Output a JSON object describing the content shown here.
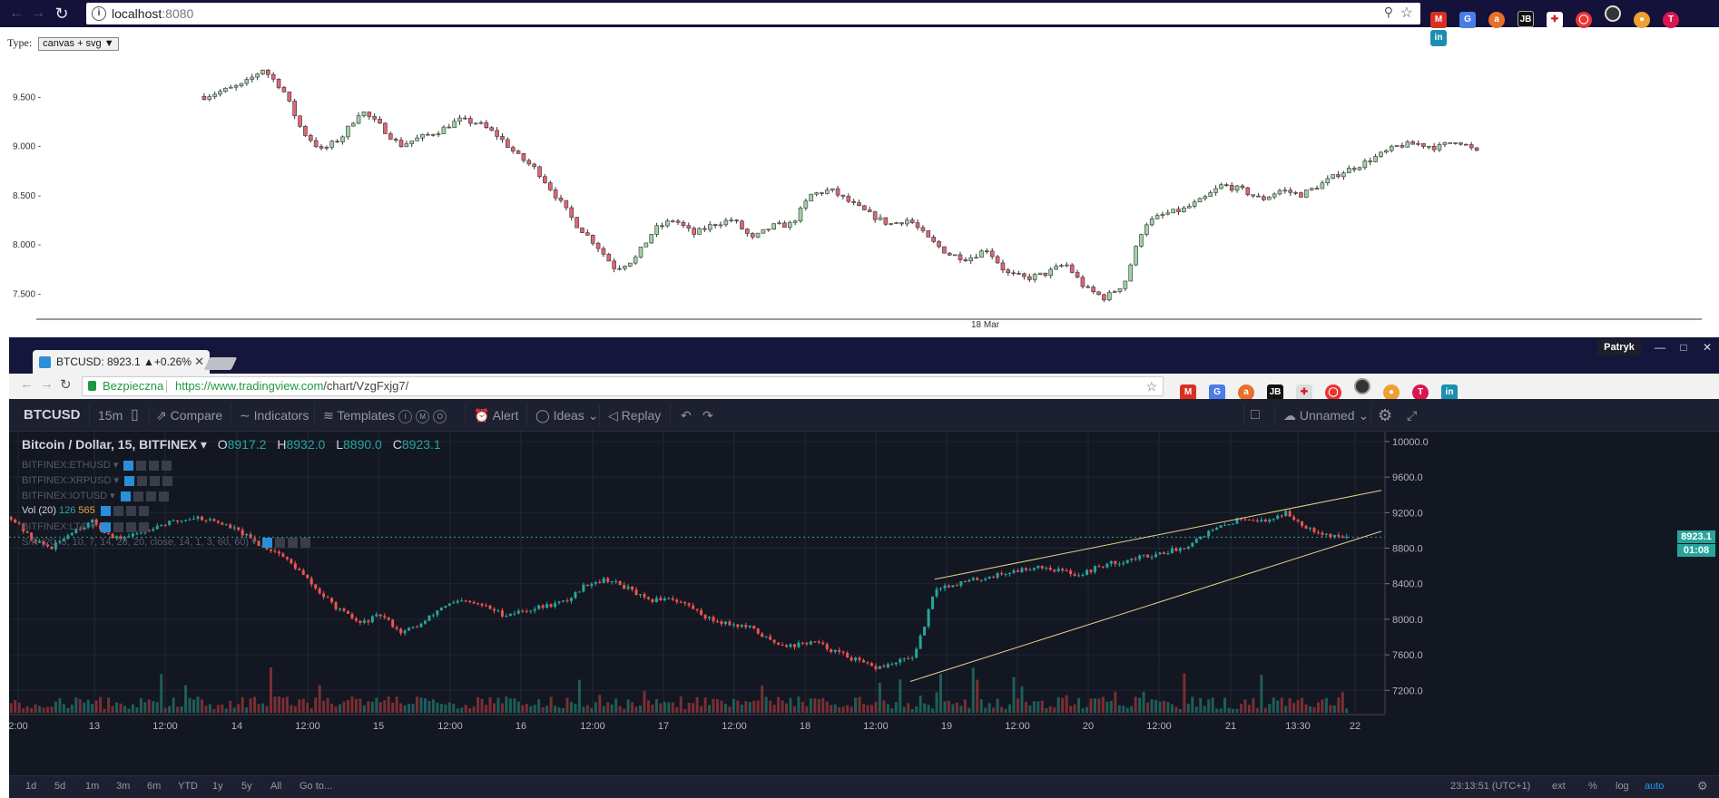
{
  "outer_browser": {
    "url_host": "localhost",
    "url_port": ":8080",
    "extensions": [
      "gmail-icon",
      "translate-icon",
      "avast-icon",
      "jetbrains-icon",
      "medical-icon",
      "shield-icon",
      "target-icon",
      "eye-icon",
      "tvtime-icon",
      "linkedin-icon"
    ]
  },
  "top_page": {
    "type_label": "Type:",
    "type_select_value": "canvas + svg ▼",
    "y_ticks": [
      "9.500 -",
      "9.000 -",
      "8.500 -",
      "8.000 -",
      "7.500 -"
    ],
    "x_tick": "18 Mar"
  },
  "inner_browser": {
    "tab_title": "BTCUSD: 8923.1 ▲+0.26%",
    "user": "Patryk",
    "secure_label": "Bezpieczna",
    "url_scheme_host": "https://www.tradingview.com",
    "url_path": "/chart/VzgFxjg7/"
  },
  "tv": {
    "symbol": "BTCUSD",
    "interval": "15m",
    "compare": "Compare",
    "indicators": "Indicators",
    "templates": "Templates",
    "alert": "Alert",
    "ideas": "Ideas",
    "replay": "Replay",
    "layout_name": "Unnamed",
    "title": "Bitcoin / Dollar, 15, BITFINEX",
    "o_label": "O",
    "o_value": "8917.2",
    "h_label": "H",
    "h_value": "8932.0",
    "l_label": "L",
    "l_value": "8890.0",
    "c_label": "C",
    "c_value": "8923.1",
    "studies": [
      "BITFINEX:ETHUSD",
      "BITFINEX:XRPUSD",
      "BITFINEX:IOTUSD",
      "Vol (20)",
      "BITFINEX:LTC",
      "S/R (20, 3, 10, 7, 14, 28, 20, close, 14, 1, 3, 60, 60)"
    ],
    "vol_values": [
      "126",
      "565"
    ],
    "price_ticks": [
      "10000.0",
      "9600.0",
      "9200.0",
      "8800.0",
      "8400.0",
      "8000.0",
      "7600.0",
      "7200.0"
    ],
    "time_ticks": [
      "2:00",
      "13",
      "12:00",
      "14",
      "12:00",
      "15",
      "12:00",
      "16",
      "12:00",
      "17",
      "12:00",
      "18",
      "12:00",
      "19",
      "12:00",
      "20",
      "12:00",
      "21",
      "13:30",
      "22"
    ],
    "last_price": "8923.1",
    "countdown": "01:08",
    "ranges": [
      "1d",
      "5d",
      "1m",
      "3m",
      "6m",
      "YTD",
      "1y",
      "5y",
      "All",
      "Go to..."
    ],
    "clock": "23:13:51 (UTC+1)",
    "ext": "ext",
    "percent": "%",
    "log": "log",
    "auto": "auto"
  },
  "chart_data": [
    {
      "type": "candlestick",
      "title": "",
      "xlabel": "",
      "ylabel": "",
      "ylim": [
        7300,
        9900
      ],
      "x_ticks": [
        "18 Mar"
      ],
      "y_ticks": [
        7500,
        8000,
        8500,
        9000,
        9500
      ],
      "close_trend": [
        9500,
        9560,
        9620,
        9780,
        9580,
        9150,
        8950,
        9080,
        9360,
        9200,
        9000,
        9080,
        9150,
        9260,
        9230,
        9100,
        8900,
        8750,
        8480,
        8200,
        8000,
        7750,
        7850,
        8150,
        8250,
        8100,
        8200,
        8250,
        8050,
        8180,
        8200,
        8500,
        8550,
        8420,
        8300,
        8200,
        8250,
        8050,
        7900,
        7850,
        7950,
        7700,
        7650,
        7700,
        7800,
        7550,
        7450,
        7600,
        8200,
        8300,
        8350,
        8450,
        8600,
        8550,
        8450,
        8550,
        8500,
        8600,
        8720,
        8800,
        8900,
        9000,
        9020,
        8980,
        9060,
        8930
      ]
    },
    {
      "type": "candlestick",
      "title": "Bitcoin / Dollar, 15, BITFINEX",
      "ylim": [
        7050,
        10050
      ],
      "grid": true,
      "open": 8917.2,
      "high": 8932.0,
      "low": 8890.0,
      "close": 8923.1,
      "close_trend": [
        9150,
        8900,
        8800,
        9000,
        9100,
        8900,
        8950,
        9050,
        9100,
        9150,
        9100,
        9000,
        8850,
        8750,
        8550,
        8300,
        8100,
        7950,
        8050,
        7850,
        7950,
        8150,
        8200,
        8150,
        8050,
        8100,
        8150,
        8200,
        8400,
        8450,
        8350,
        8200,
        8250,
        8150,
        8000,
        7950,
        7900,
        7750,
        7700,
        7750,
        7650,
        7550,
        7450,
        7500,
        7600,
        8350,
        8400,
        8450,
        8500,
        8550,
        8600,
        8550,
        8500,
        8600,
        8650,
        8700,
        8750,
        8800,
        8950,
        9050,
        9150,
        9100,
        9200,
        9050,
        8950,
        8923
      ]
    }
  ]
}
